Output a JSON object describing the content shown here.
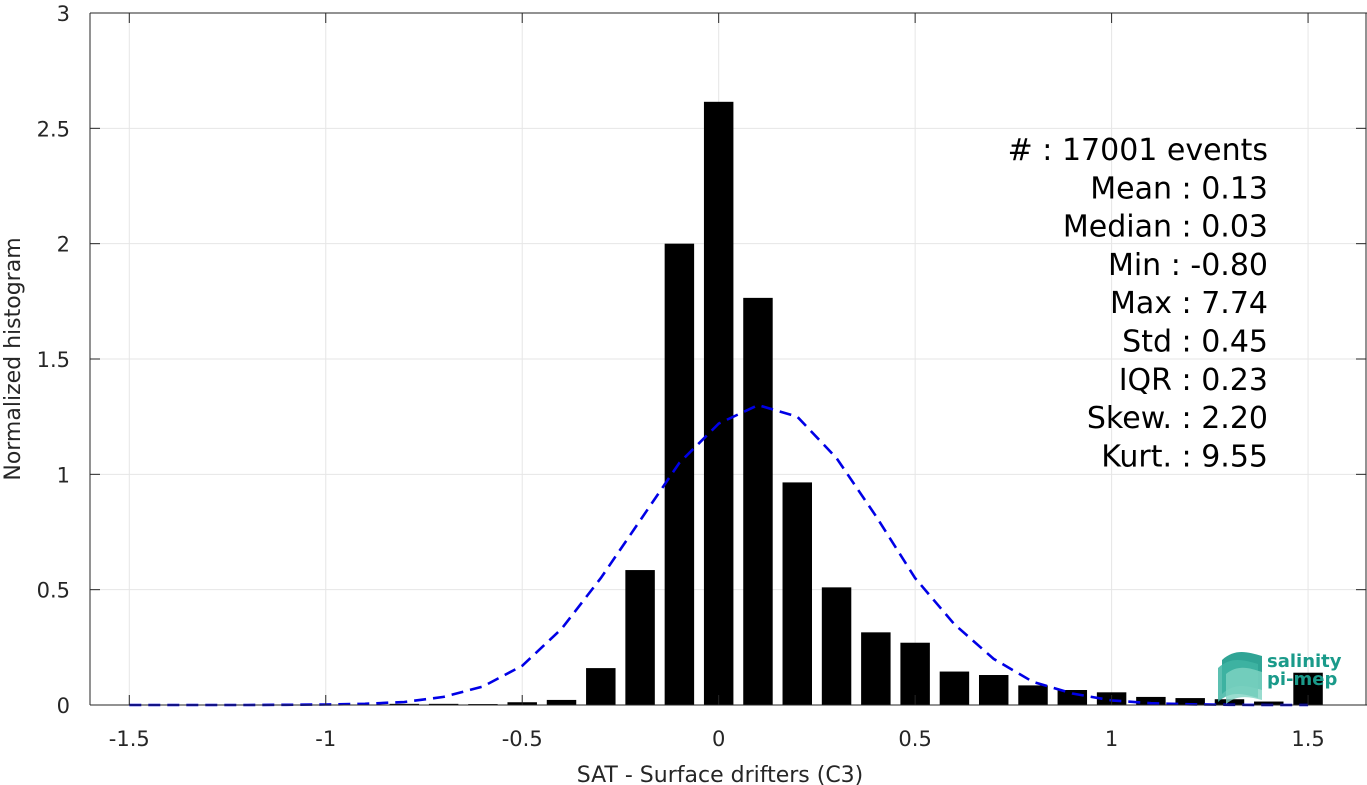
{
  "chart_data": {
    "type": "bar",
    "title": "",
    "xlabel": "SAT - Surface drifters (C3)",
    "ylabel": "Normalized histogram",
    "xlim": [
      -1.6,
      1.65
    ],
    "ylim": [
      0,
      3
    ],
    "grid": true,
    "xticks": [
      -1.5,
      -1,
      -0.5,
      0,
      0.5,
      1,
      1.5
    ],
    "xtick_labels": [
      "-1.5",
      "-1",
      "-0.5",
      "0",
      "0.5",
      "1",
      "1.5"
    ],
    "yticks": [
      0,
      0.5,
      1,
      1.5,
      2,
      2.5,
      3
    ],
    "ytick_labels": [
      "0",
      "0.5",
      "1",
      "1.5",
      "2",
      "2.5",
      "3"
    ],
    "bar_width": 0.075,
    "x": [
      -0.8,
      -0.7,
      -0.6,
      -0.5,
      -0.4,
      -0.3,
      -0.2,
      -0.1,
      0.0,
      0.1,
      0.2,
      0.3,
      0.4,
      0.5,
      0.6,
      0.7,
      0.8,
      0.9,
      1.0,
      1.1,
      1.2,
      1.3,
      1.4,
      1.5
    ],
    "values": [
      0.005,
      0.005,
      0.004,
      0.012,
      0.022,
      0.16,
      0.585,
      2.0,
      2.615,
      1.765,
      0.965,
      0.51,
      0.315,
      0.27,
      0.145,
      0.13,
      0.085,
      0.065,
      0.055,
      0.035,
      0.03,
      0.025,
      0.015,
      0.14
    ],
    "bar_color": "#000000",
    "fit_curve": {
      "style": "dashed",
      "color": "#0000e6",
      "x": [
        -1.5,
        -1.4,
        -1.3,
        -1.2,
        -1.1,
        -1.0,
        -0.9,
        -0.8,
        -0.7,
        -0.6,
        -0.5,
        -0.4,
        -0.3,
        -0.2,
        -0.1,
        0.0,
        0.1,
        0.2,
        0.3,
        0.4,
        0.5,
        0.6,
        0.7,
        0.8,
        0.9,
        1.0,
        1.1,
        1.2,
        1.3,
        1.4,
        1.5
      ],
      "y": [
        0.0,
        0.0,
        0.0,
        0.0,
        0.001,
        0.002,
        0.005,
        0.013,
        0.035,
        0.08,
        0.17,
        0.33,
        0.55,
        0.8,
        1.05,
        1.22,
        1.3,
        1.25,
        1.07,
        0.82,
        0.55,
        0.35,
        0.2,
        0.1,
        0.05,
        0.02,
        0.008,
        0.003,
        0.001,
        0.0,
        0.0
      ]
    },
    "annotations": [
      "#  : 17001 events",
      "Mean : 0.13",
      "Median : 0.03",
      "Min : -0.80",
      "Max : 7.74",
      "Std : 0.45",
      "IQR : 0.23",
      "Skew. : 2.20",
      "Kurt. : 9.55"
    ]
  },
  "logo": {
    "line1": "salinity",
    "line2": "pi-mep"
  },
  "colors": {
    "axis": "#262626",
    "grid": "#e6e6e6",
    "logo_teal": "#1a9a8a"
  }
}
